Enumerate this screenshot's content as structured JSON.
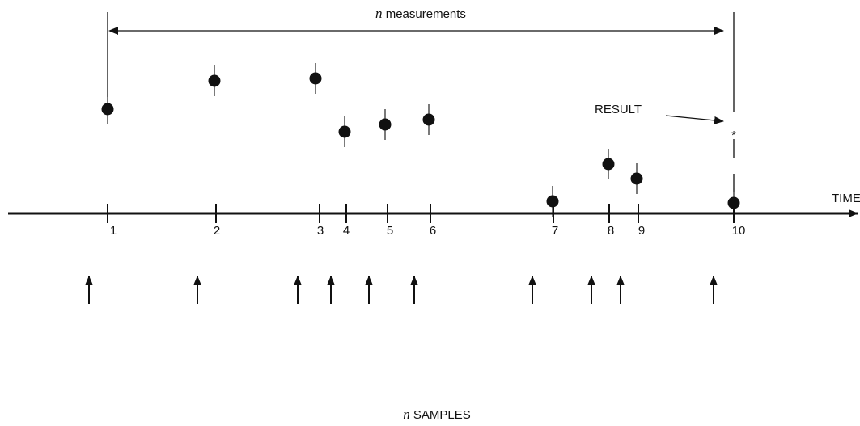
{
  "measurements_label": {
    "variable": "n",
    "text": "measurements"
  },
  "result_label": "RESULT",
  "axis_label": "TIME",
  "tick_labels": [
    "1",
    "2",
    "3",
    "4",
    "5",
    "6",
    "7",
    "8",
    "9",
    "10"
  ],
  "samples_label": {
    "variable": "n",
    "text": "SAMPLES"
  }
}
